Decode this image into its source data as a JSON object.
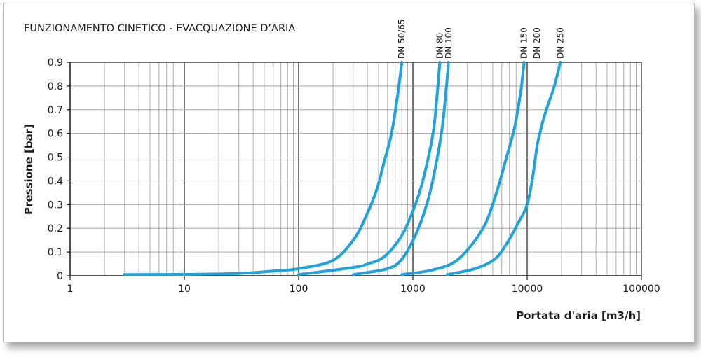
{
  "chart_data": {
    "type": "line",
    "title": "FUNZIONAMENTO CINETICO - EVACQUAZIONE D’ARIA",
    "xlabel": "Portata d'aria [m3/h]",
    "ylabel": "Pressione [bar]",
    "x_scale": "log",
    "xlim": [
      1,
      100000
    ],
    "ylim": [
      0,
      0.9
    ],
    "x_ticks": [
      {
        "value": 1,
        "label": "1"
      },
      {
        "value": 10,
        "label": "10"
      },
      {
        "value": 100,
        "label": "100"
      },
      {
        "value": 1000,
        "label": "1000"
      },
      {
        "value": 10000,
        "label": "10000"
      },
      {
        "value": 100000,
        "label": "100000"
      }
    ],
    "y_ticks": [
      {
        "value": 0,
        "label": "0"
      },
      {
        "value": 0.1,
        "label": "0.1"
      },
      {
        "value": 0.2,
        "label": "0.2"
      },
      {
        "value": 0.3,
        "label": "0.3"
      },
      {
        "value": 0.4,
        "label": "0.4"
      },
      {
        "value": 0.5,
        "label": "0.5"
      },
      {
        "value": 0.6,
        "label": "0.6"
      },
      {
        "value": 0.7,
        "label": "0.7"
      },
      {
        "value": 0.8,
        "label": "0.8"
      },
      {
        "value": 0.9,
        "label": "0.9"
      }
    ],
    "grid": true,
    "line_color": "#1fa3dc",
    "series": [
      {
        "name": "DN 50/65",
        "x": [
          3,
          10,
          30,
          60,
          100,
          200,
          300,
          380,
          480,
          560,
          650,
          730,
          800
        ],
        "y": [
          0.005,
          0.006,
          0.01,
          0.02,
          0.03,
          0.065,
          0.15,
          0.24,
          0.36,
          0.48,
          0.6,
          0.75,
          0.9
        ]
      },
      {
        "name": "DN 80",
        "x": [
          100,
          300,
          400,
          560,
          800,
          1050,
          1250,
          1500,
          1620,
          1720
        ],
        "y": [
          0.005,
          0.035,
          0.05,
          0.08,
          0.17,
          0.3,
          0.42,
          0.6,
          0.75,
          0.9
        ]
      },
      {
        "name": "DN 100",
        "x": [
          300,
          600,
          800,
          1050,
          1320,
          1550,
          1800,
          1950,
          2050
        ],
        "y": [
          0.005,
          0.03,
          0.07,
          0.17,
          0.3,
          0.44,
          0.62,
          0.78,
          0.9
        ]
      },
      {
        "name": "DN 150",
        "x": [
          800,
          1500,
          2500,
          4100,
          5300,
          6600,
          7800,
          8800,
          9400
        ],
        "y": [
          0.005,
          0.025,
          0.07,
          0.2,
          0.34,
          0.5,
          0.63,
          0.78,
          0.9
        ]
      },
      {
        "name": "DN 200",
        "x": [
          2000,
          3500,
          5200,
          6700,
          8300,
          10000,
          11200,
          12200
        ],
        "y": [
          0.005,
          0.03,
          0.07,
          0.14,
          0.22,
          0.3,
          0.42,
          0.55
        ]
      },
      {
        "name": "DN 250",
        "x": [
          12200,
          13700,
          15200,
          16800,
          18200,
          19500
        ],
        "y": [
          0.55,
          0.65,
          0.72,
          0.78,
          0.84,
          0.9
        ]
      }
    ]
  }
}
